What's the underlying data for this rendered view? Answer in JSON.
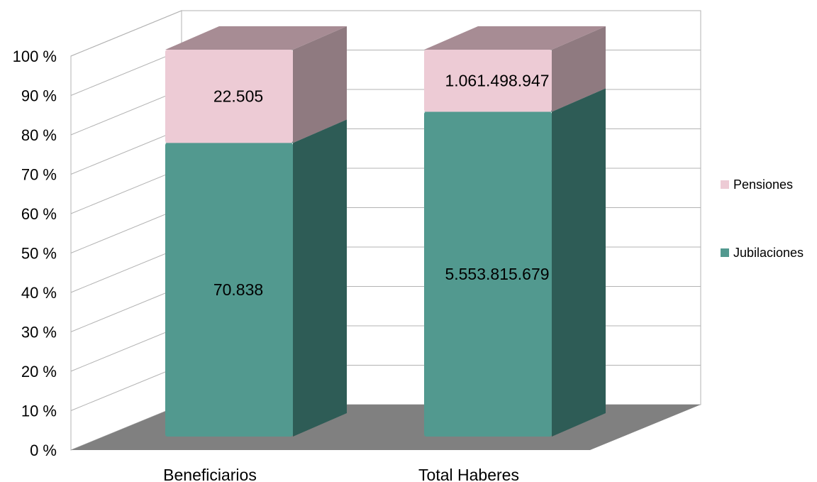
{
  "chart_data": {
    "type": "bar",
    "stacked": "percent",
    "three_d": true,
    "categories": [
      "Beneficiarios",
      "Total Haberes"
    ],
    "series": [
      {
        "name": "Jubilaciones",
        "values": [
          70838,
          5553815679
        ],
        "labels": [
          "70.838",
          "5.553.815.679"
        ],
        "color": "#52998f"
      },
      {
        "name": "Pensiones",
        "values": [
          22505,
          1061498947
        ],
        "labels": [
          "22.505",
          "1.061.498.947"
        ],
        "color": "#edcbd5"
      }
    ],
    "y_ticks": [
      "0 %",
      "10 %",
      "20 %",
      "30 %",
      "40 %",
      "50 %",
      "60 %",
      "70 %",
      "80 %",
      "90 %",
      "100 %"
    ],
    "ylim": [
      0,
      100
    ],
    "grid": true,
    "legend_position": "right",
    "colors": {
      "jubilaciones_front": "#52998f",
      "jubilaciones_side": "#2e5c56",
      "jubilaciones_top": "#3d7a72",
      "pensiones_front": "#edcbd5",
      "pensiones_side": "#8f7a80",
      "pensiones_top": "#a78c94",
      "floor": "#808080",
      "grid": "#b3b3b3"
    }
  }
}
